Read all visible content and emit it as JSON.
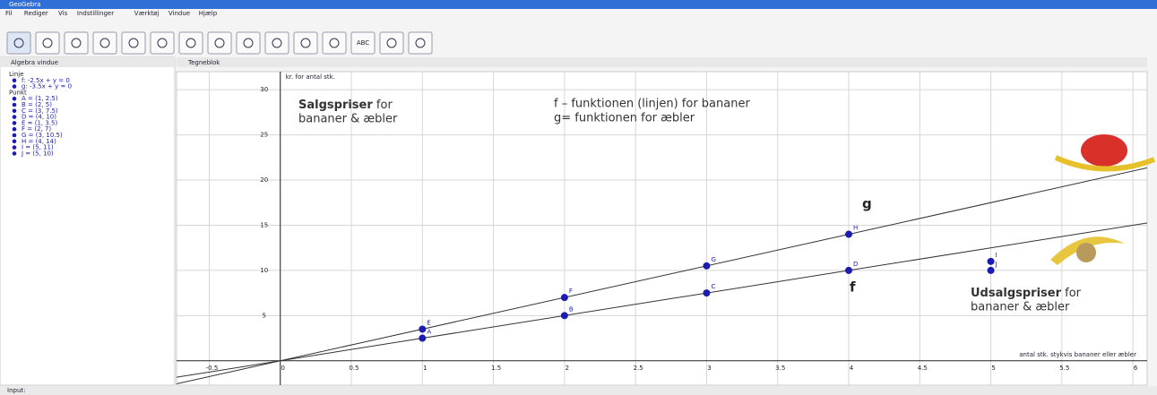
{
  "window": {
    "title": "GeoGebra"
  },
  "menu": [
    "Fil",
    "Rediger",
    "Vis",
    "Indstillinger",
    "Værktøj",
    "Vindue",
    "Hjælp"
  ],
  "toolbar": {
    "text_tool": "ABC"
  },
  "algebra_view": {
    "title": "Algebra vindue",
    "groups": [
      {
        "label": "Linje",
        "items": [
          "f: -2.5x + y = 0",
          "g: -3.5x + y = 0"
        ]
      },
      {
        "label": "Punkt",
        "items": [
          "A = (1, 2.5)",
          "B = (2, 5)",
          "C = (3, 7.5)",
          "D = (4, 10)",
          "E = (1, 3.5)",
          "F = (2, 7)",
          "G = (3, 10.5)",
          "H = (4, 14)",
          "I = (5, 11)",
          "J = (5, 10)"
        ]
      }
    ]
  },
  "graphics_title": "Tegneblok",
  "input_label": "Input:",
  "chart_data": {
    "type": "line",
    "y_label": "kr. for antal stk.",
    "x_label": "antal stk. stykvis bananer eller æbler",
    "xlim": [
      -0.73,
      6.1
    ],
    "ylim": [
      -2.7,
      32
    ],
    "xticks": [
      -0.5,
      0,
      0.5,
      1,
      1.5,
      2,
      2.5,
      3,
      3.5,
      4,
      4.5,
      5,
      5.5,
      6
    ],
    "yticks": [
      5,
      10,
      15,
      20,
      25,
      30
    ],
    "grid": true,
    "line_color": "#333333",
    "point_color": "#1c1cb0",
    "series": [
      {
        "name": "f",
        "slope": 2.5
      },
      {
        "name": "g",
        "slope": 3.5
      }
    ],
    "points": [
      {
        "label": "A",
        "x": 1,
        "y": 2.5
      },
      {
        "label": "B",
        "x": 2,
        "y": 5
      },
      {
        "label": "C",
        "x": 3,
        "y": 7.5
      },
      {
        "label": "D",
        "x": 4,
        "y": 10
      },
      {
        "label": "E",
        "x": 1,
        "y": 3.5
      },
      {
        "label": "F",
        "x": 2,
        "y": 7
      },
      {
        "label": "G",
        "x": 3,
        "y": 10.5
      },
      {
        "label": "H",
        "x": 4,
        "y": 14
      },
      {
        "label": "I",
        "x": 5,
        "y": 11
      },
      {
        "label": "J",
        "x": 5,
        "y": 10
      }
    ],
    "annotations": {
      "sale_bold": "Salgspriser",
      "sale_rest": " for",
      "sale_line2": "bananer & æbler",
      "f_desc": "f – funktionen (linjen) for bananer",
      "g_desc": "g= funktionen for æbler",
      "discount_bold": "Udsalgspriser",
      "discount_rest": " for",
      "discount_line2": "bananer & æbler"
    }
  }
}
